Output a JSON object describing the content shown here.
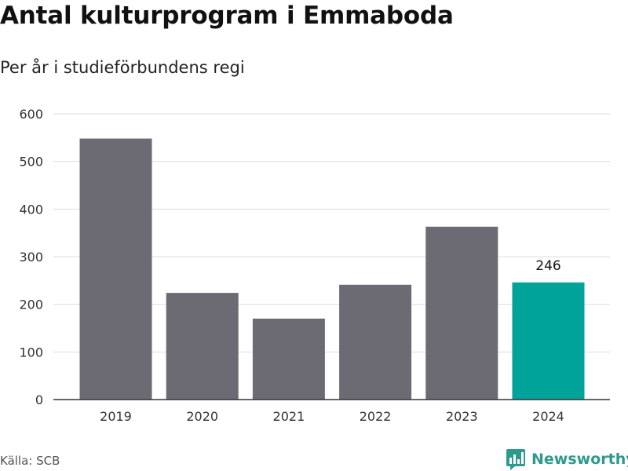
{
  "chart_data": {
    "type": "bar",
    "title": "Antal kulturprogram i Emmaboda",
    "subtitle": "Per år i studieförbundens regi",
    "categories": [
      "2019",
      "2020",
      "2021",
      "2022",
      "2023",
      "2024"
    ],
    "values": [
      548,
      224,
      170,
      241,
      363,
      246
    ],
    "ylim": [
      0,
      600
    ],
    "yticks": [
      0,
      100,
      200,
      300,
      400,
      500,
      600
    ],
    "grid": true,
    "highlight_label": "246",
    "colors": {
      "bar": "#6c6b73",
      "highlight": "#00a39a",
      "grid": "#dddddd",
      "axis": "#333333"
    }
  },
  "source": "Källa: SCB",
  "brand": {
    "name": "Newsworthy",
    "icon": "newsworthy-logo-icon",
    "color": "#2e9a8c"
  }
}
